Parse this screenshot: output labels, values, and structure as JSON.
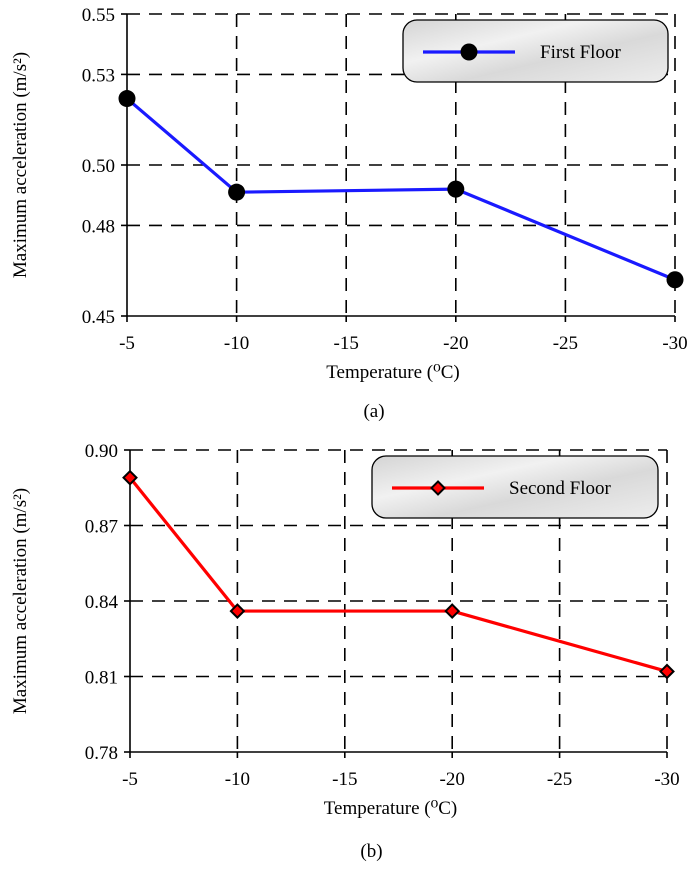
{
  "chart_data": [
    {
      "type": "line",
      "caption": "(a)",
      "xlabel": "Temperature (⁰C)",
      "ylabel": "Maximum acceleration (m/s²)",
      "x_ticks": [
        "-5",
        "-10",
        "-15",
        "-20",
        "-25",
        "-30"
      ],
      "y_ticks": [
        "0.45",
        "0.48",
        "0.50",
        "0.53",
        "0.55"
      ],
      "ylim": [
        0.45,
        0.55
      ],
      "grid": true,
      "grid_style": "dashed",
      "legend_position": "top-right",
      "series": [
        {
          "name": "First Floor",
          "color": "#1a1aff",
          "marker": "circle",
          "x": [
            -5,
            -10,
            -20,
            -30
          ],
          "values": [
            0.522,
            0.491,
            0.492,
            0.462
          ]
        }
      ]
    },
    {
      "type": "line",
      "caption": "(b)",
      "xlabel": "Temperature (⁰C)",
      "ylabel": "Maximum acceleration (m/s²)",
      "x_ticks": [
        "-5",
        "-10",
        "-15",
        "-20",
        "-25",
        "-30"
      ],
      "y_ticks": [
        "0.78",
        "0.81",
        "0.84",
        "0.87",
        "0.90"
      ],
      "ylim": [
        0.78,
        0.9
      ],
      "grid": true,
      "grid_style": "dashed",
      "legend_position": "top-right",
      "series": [
        {
          "name": "Second Floor",
          "color": "#ff0000",
          "marker": "diamond",
          "x": [
            -5,
            -10,
            -20,
            -30
          ],
          "values": [
            0.889,
            0.836,
            0.836,
            0.812
          ]
        }
      ]
    }
  ]
}
